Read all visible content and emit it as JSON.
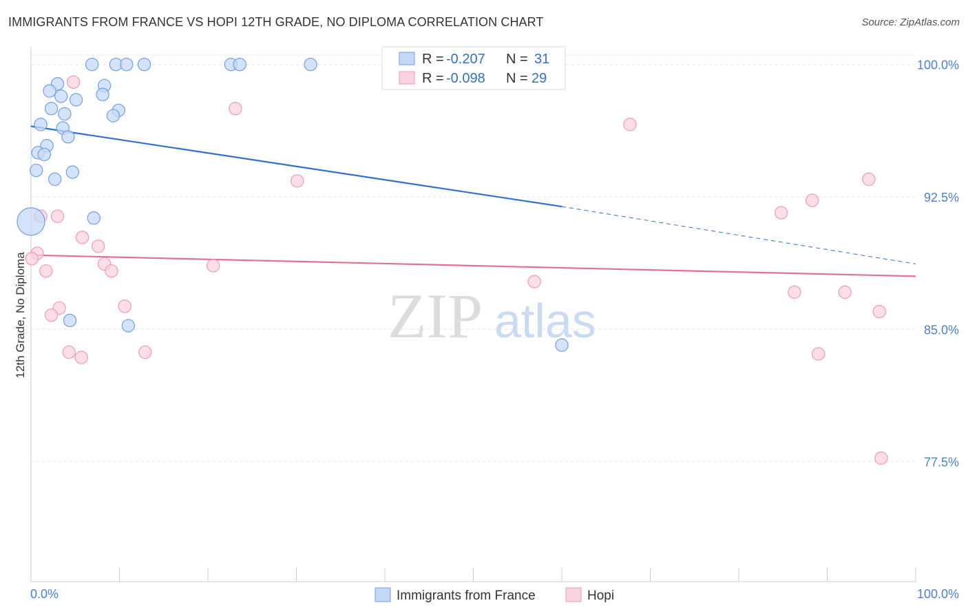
{
  "chart_data": {
    "type": "scatter",
    "title": "IMMIGRANTS FROM FRANCE VS HOPI 12TH GRADE, NO DIPLOMA CORRELATION CHART",
    "source": "Source: ZipAtlas.com",
    "watermark": {
      "zip": "ZIP",
      "atlas": "atlas"
    },
    "ylabel": "12th Grade, No Diploma",
    "xlabel": "",
    "xlim": [
      0,
      100
    ],
    "ylim": [
      70.7,
      101.0
    ],
    "x_tick_labels": [
      "0.0%",
      "100.0%"
    ],
    "y_ticks": [
      {
        "value": 100.0,
        "label": "100.0%"
      },
      {
        "value": 92.5,
        "label": "92.5%"
      },
      {
        "value": 85.0,
        "label": "85.0%"
      },
      {
        "value": 77.5,
        "label": "77.5%"
      }
    ],
    "grid": true,
    "legend": {
      "stats": [
        {
          "series": "Immigrants from France",
          "r_label": "R =",
          "r_value": "-0.207",
          "n_label": "N =",
          "n_value": "31"
        },
        {
          "series": "Hopi",
          "r_label": "R =",
          "r_value": "-0.098",
          "n_label": "N =",
          "n_value": "29"
        }
      ]
    },
    "series": [
      {
        "name": "Immigrants from France",
        "color": "#6d9fe8",
        "fill": "#c5d9f7",
        "line_color": "#2f6fd0",
        "trend": {
          "x0": 0,
          "y0": 96.5,
          "x1": 60,
          "y1": 91.95,
          "x_dash_end": 100,
          "y_dash_end": 88.7
        },
        "points": [
          [
            6.9,
            100.0
          ],
          [
            9.6,
            100.0
          ],
          [
            10.8,
            100.0
          ],
          [
            12.8,
            100.0
          ],
          [
            22.6,
            100.0
          ],
          [
            23.6,
            100.0
          ],
          [
            31.6,
            100.0
          ],
          [
            3.0,
            98.9
          ],
          [
            8.3,
            98.8
          ],
          [
            2.1,
            98.5
          ],
          [
            8.1,
            98.3
          ],
          [
            3.4,
            98.2
          ],
          [
            5.1,
            98.0
          ],
          [
            9.9,
            97.4
          ],
          [
            2.3,
            97.5
          ],
          [
            3.8,
            97.2
          ],
          [
            9.3,
            97.1
          ],
          [
            1.1,
            96.6
          ],
          [
            3.6,
            96.4
          ],
          [
            4.2,
            95.9
          ],
          [
            1.8,
            95.4
          ],
          [
            0.8,
            95.0
          ],
          [
            1.5,
            94.9
          ],
          [
            0.6,
            94.0
          ],
          [
            4.7,
            93.9
          ],
          [
            2.7,
            93.5
          ],
          [
            0.0,
            91.1
          ],
          [
            7.1,
            91.3
          ],
          [
            4.4,
            85.5
          ],
          [
            11.0,
            85.2
          ],
          [
            60.0,
            84.1
          ]
        ],
        "point_sizes": [
          10,
          10,
          10,
          10,
          10,
          10,
          10,
          10,
          10,
          10,
          10,
          10,
          10,
          10,
          10,
          10,
          10,
          10,
          10,
          10,
          10,
          10,
          10,
          10,
          10,
          10,
          22,
          10,
          10,
          10,
          10
        ]
      },
      {
        "name": "Hopi",
        "color": "#ee99b5",
        "fill": "#f9d3e0",
        "line_color": "#e0709a",
        "trend": {
          "x0": 0,
          "y0": 89.2,
          "x1": 100,
          "y1": 88.0
        },
        "points": [
          [
            4.8,
            99.0
          ],
          [
            23.1,
            97.5
          ],
          [
            67.7,
            96.6
          ],
          [
            30.1,
            93.4
          ],
          [
            94.7,
            93.5
          ],
          [
            88.3,
            92.3
          ],
          [
            84.8,
            91.6
          ],
          [
            1.1,
            91.4
          ],
          [
            3.0,
            91.4
          ],
          [
            5.8,
            90.2
          ],
          [
            7.6,
            89.7
          ],
          [
            0.7,
            89.3
          ],
          [
            0.1,
            89.0
          ],
          [
            8.3,
            88.7
          ],
          [
            20.6,
            88.6
          ],
          [
            1.7,
            88.3
          ],
          [
            9.1,
            88.3
          ],
          [
            56.9,
            87.7
          ],
          [
            86.3,
            87.1
          ],
          [
            92.0,
            87.1
          ],
          [
            10.6,
            86.3
          ],
          [
            3.2,
            86.2
          ],
          [
            2.3,
            85.8
          ],
          [
            95.9,
            86.0
          ],
          [
            4.3,
            83.7
          ],
          [
            12.9,
            83.7
          ],
          [
            89.0,
            83.6
          ],
          [
            5.7,
            83.4
          ],
          [
            96.1,
            77.7
          ]
        ],
        "point_sizes": [
          10,
          10,
          10,
          10,
          10,
          10,
          10,
          10,
          10,
          10,
          10,
          10,
          10,
          10,
          10,
          10,
          10,
          10,
          10,
          10,
          10,
          10,
          10,
          10,
          10,
          10,
          10,
          10,
          10
        ]
      }
    ]
  }
}
